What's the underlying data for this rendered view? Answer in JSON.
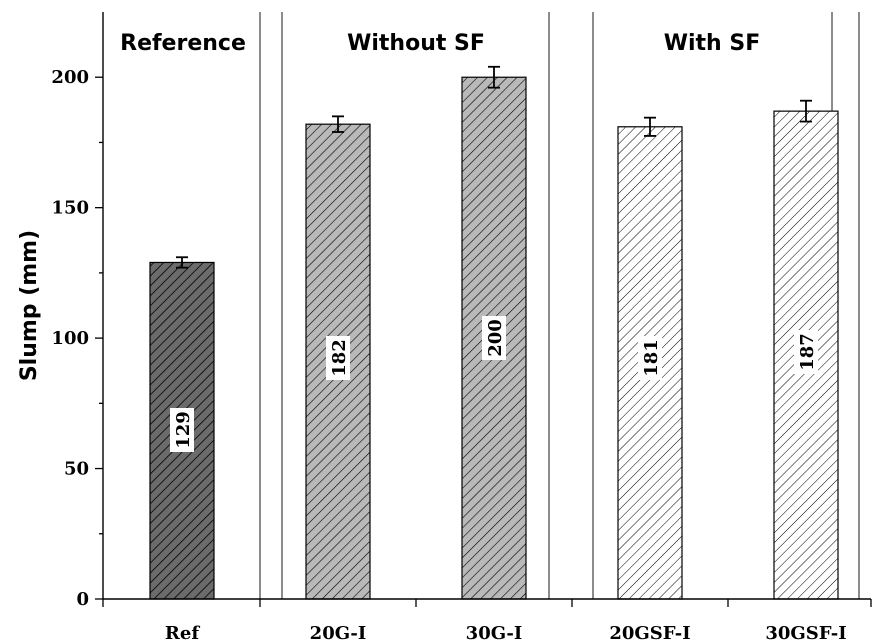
{
  "chart_data": {
    "type": "bar",
    "title": "",
    "xlabel": "",
    "ylabel": "Slump (mm)",
    "ylim": [
      0,
      225
    ],
    "yticks": [
      0,
      50,
      100,
      150,
      200
    ],
    "grid": false,
    "categories": [
      "Ref",
      "20G-I",
      "30G-I",
      "20GSF-I",
      "30GSF-I"
    ],
    "values": [
      129,
      182,
      200,
      181,
      187
    ],
    "errors": [
      2,
      3,
      4,
      3.5,
      4
    ],
    "value_labels": [
      "129",
      "182",
      "200",
      "181",
      "187"
    ],
    "groups": [
      {
        "label": "Reference",
        "categories": [
          "Ref"
        ]
      },
      {
        "label": "Without SF",
        "categories": [
          "20G-I",
          "30G-I"
        ]
      },
      {
        "label": "With SF",
        "categories": [
          "20GSF-I",
          "30GSF-I"
        ]
      }
    ],
    "bar_fill_colors": [
      "#6b6b6b",
      "#b9b9b9",
      "#b9b9b9",
      "#ffffff",
      "#ffffff"
    ],
    "hatch_color": "#000000",
    "hatch": "diagonal-lines"
  }
}
